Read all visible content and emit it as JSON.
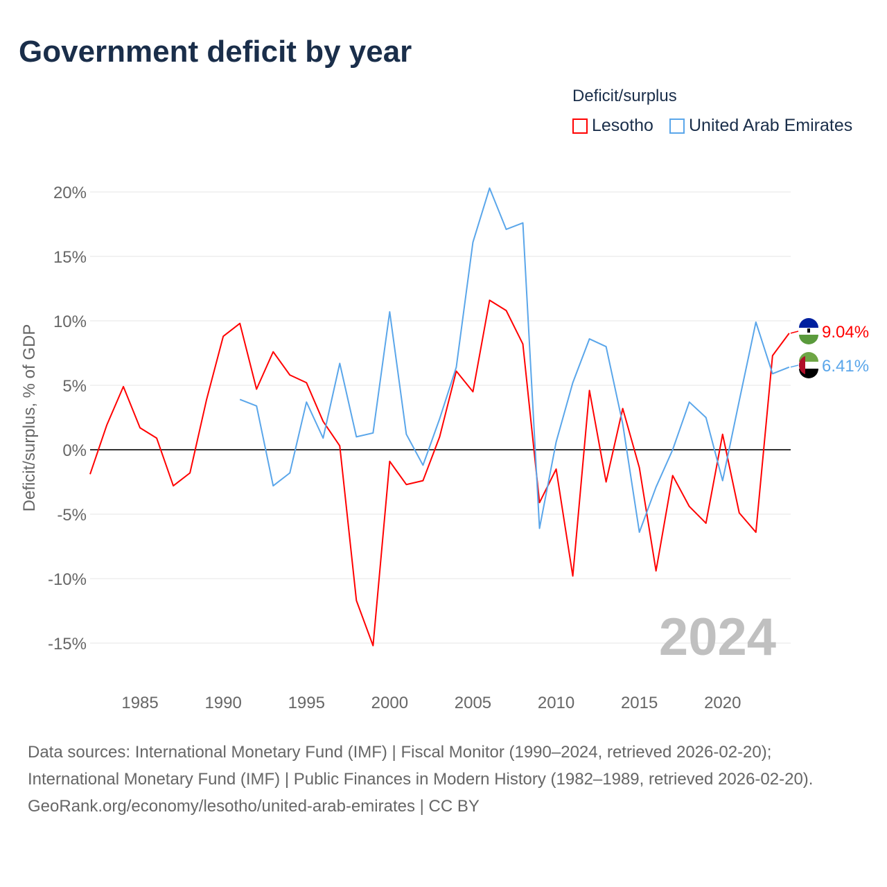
{
  "title": "Government deficit by year",
  "chart_data": {
    "type": "line",
    "title": "Government deficit by year",
    "ylabel": "Deficit/surplus, % of GDP",
    "xlabel": "",
    "ylim": [
      -17,
      21
    ],
    "xlim": [
      1982,
      2024
    ],
    "yticks": [
      20,
      15,
      10,
      5,
      0,
      -5,
      -10,
      -15
    ],
    "ytick_labels": [
      "20%",
      "15%",
      "10%",
      "5%",
      "0%",
      "-5%",
      "-10%",
      "-15%"
    ],
    "xticks": [
      1985,
      1990,
      1995,
      2000,
      2005,
      2010,
      2015,
      2020
    ],
    "xtick_labels": [
      "1985",
      "1990",
      "1995",
      "2000",
      "2005",
      "2010",
      "2015",
      "2020"
    ],
    "legend_title": "Deficit/surplus",
    "legend_placement": "top-right",
    "year_watermark": "2024",
    "series": [
      {
        "name": "Lesotho",
        "color": "#ff0000",
        "end_label": "9.04%",
        "start": 1982,
        "values": [
          -1.9,
          1.9,
          4.9,
          1.7,
          0.9,
          -2.8,
          -1.8,
          3.9,
          8.8,
          9.8,
          4.7,
          7.6,
          5.8,
          5.2,
          2.2,
          0.3,
          -11.7,
          -15.2,
          -0.9,
          -2.7,
          -2.4,
          1.0,
          6.1,
          4.5,
          11.6,
          10.8,
          8.2,
          -4.1,
          -1.5,
          -9.8,
          4.6,
          -2.5,
          3.2,
          -1.4,
          -9.4,
          -2.0,
          -4.4,
          -5.7,
          1.2,
          -4.9,
          -6.4,
          7.3,
          9.04
        ]
      },
      {
        "name": "United Arab Emirates",
        "color": "#5aa6ea",
        "end_label": "6.41%",
        "start": 1991,
        "values": [
          3.9,
          3.4,
          -2.8,
          -1.8,
          3.7,
          0.9,
          6.7,
          1.0,
          1.3,
          10.7,
          1.2,
          -1.2,
          2.4,
          6.4,
          16.1,
          20.3,
          17.1,
          17.6,
          -6.1,
          0.6,
          5.2,
          8.6,
          8.0,
          2.0,
          -6.4,
          -2.9,
          0.0,
          3.7,
          2.5,
          -2.4,
          3.8,
          9.9,
          5.9,
          6.41
        ]
      }
    ]
  },
  "footer": {
    "sources": "Data sources: International Monetary Fund (IMF) | Fiscal Monitor (1990–2024, retrieved 2026-02-20); International Monetary Fund (IMF) | Public Finances in Modern History (1982–1989, retrieved 2026-02-20).",
    "link": "GeoRank.org/economy/lesotho/united-arab-emirates | CC BY"
  }
}
